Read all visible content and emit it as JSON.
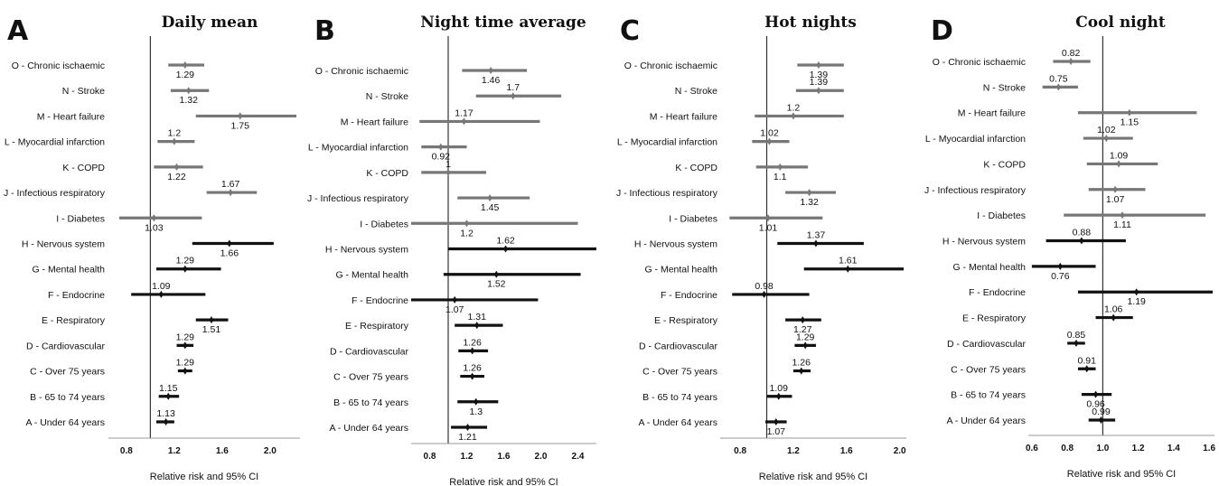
{
  "chart_data": [
    {
      "type": "forest",
      "panel": "A",
      "title": "Daily mean",
      "xlabel": "Relative risk and 95% CI",
      "xlim": [
        0.65,
        2.25
      ],
      "xticks": [
        "0.8",
        "1.2",
        "1.6",
        "2.0"
      ],
      "reference_line": 1.0,
      "rows": [
        {
          "label": "O - Chronic ischaemic",
          "value": 1.29,
          "value_text": "1.29",
          "ci": [
            1.15,
            1.45
          ],
          "color": "#777777"
        },
        {
          "label": "N - Stroke",
          "value": 1.32,
          "value_text": "1.32",
          "ci": [
            1.17,
            1.49
          ],
          "color": "#777777"
        },
        {
          "label": "M - Heart failure",
          "value": 1.75,
          "value_text": "1.75",
          "ci": [
            1.38,
            2.22
          ],
          "color": "#777777"
        },
        {
          "label": "L - Myocardial infarction",
          "value": 1.2,
          "value_text": "1.2",
          "ci": [
            1.06,
            1.37
          ],
          "color": "#777777"
        },
        {
          "label": "K - COPD",
          "value": 1.22,
          "value_text": "1.22",
          "ci": [
            1.03,
            1.44
          ],
          "color": "#777777"
        },
        {
          "label": "J - Infectious respiratory",
          "value": 1.67,
          "value_text": "1.67",
          "ci": [
            1.47,
            1.89
          ],
          "color": "#777777"
        },
        {
          "label": "I - Diabetes",
          "value": 1.03,
          "value_text": "1.03",
          "ci": [
            0.74,
            1.43
          ],
          "color": "#777777"
        },
        {
          "label": "H - Nervous system",
          "value": 1.66,
          "value_text": "1.66",
          "ci": [
            1.35,
            2.03
          ],
          "color": "#111111"
        },
        {
          "label": "G - Mental health",
          "value": 1.29,
          "value_text": "1.29",
          "ci": [
            1.05,
            1.59
          ],
          "color": "#111111"
        },
        {
          "label": "F - Endocrine",
          "value": 1.09,
          "value_text": "1.09",
          "ci": [
            0.84,
            1.46
          ],
          "color": "#111111"
        },
        {
          "label": "E - Respiratory",
          "value": 1.51,
          "value_text": "1.51",
          "ci": [
            1.38,
            1.65
          ],
          "color": "#111111"
        },
        {
          "label": "D - Cardiovascular",
          "value": 1.29,
          "value_text": "1.29",
          "ci": [
            1.22,
            1.36
          ],
          "color": "#111111"
        },
        {
          "label": "C - Over 75 years",
          "value": 1.29,
          "value_text": "1.29",
          "ci": [
            1.23,
            1.35
          ],
          "color": "#111111"
        },
        {
          "label": "B - 65 to 74 years",
          "value": 1.15,
          "value_text": "1.15",
          "ci": [
            1.07,
            1.24
          ],
          "color": "#111111"
        },
        {
          "label": "A - Under 64 years",
          "value": 1.13,
          "value_text": "1.13",
          "ci": [
            1.05,
            1.2
          ],
          "color": "#111111"
        }
      ]
    },
    {
      "type": "forest",
      "panel": "B",
      "title": "Night time average",
      "xlabel": "Relative risk and 95% CI",
      "xlim": [
        0.6,
        2.6
      ],
      "xticks": [
        "0.8",
        "1.2",
        "1.6",
        "2.0",
        "2.4"
      ],
      "reference_line": 1.0,
      "rows": [
        {
          "label": "O - Chronic ischaemic",
          "value": 1.46,
          "value_text": "1.46",
          "ci": [
            1.15,
            1.85
          ],
          "color": "#777777"
        },
        {
          "label": "N - Stroke",
          "value": 1.7,
          "value_text": "1.7",
          "ci": [
            1.3,
            2.22
          ],
          "color": "#777777"
        },
        {
          "label": "M - Heart failure",
          "value": 1.17,
          "value_text": "1.17",
          "ci": [
            0.69,
            1.99
          ],
          "color": "#777777"
        },
        {
          "label": "L - Myocardial infarction",
          "value": 0.92,
          "value_text": "0.92",
          "ci": [
            0.71,
            1.2
          ],
          "color": "#777777"
        },
        {
          "label": "K - COPD",
          "value": 1.0,
          "value_text": "1",
          "ci": [
            0.71,
            1.41
          ],
          "color": "#777777"
        },
        {
          "label": "J - Infectious respiratory",
          "value": 1.45,
          "value_text": "1.45",
          "ci": [
            1.1,
            1.88
          ],
          "color": "#777777"
        },
        {
          "label": "I - Diabetes",
          "value": 1.2,
          "value_text": "1.2",
          "ci": [
            0.6,
            2.4
          ],
          "color": "#777777"
        },
        {
          "label": "H - Nervous system",
          "value": 1.62,
          "value_text": "1.62",
          "ci": [
            1.0,
            2.6
          ],
          "color": "#111111"
        },
        {
          "label": "G - Mental health",
          "value": 1.52,
          "value_text": "1.52",
          "ci": [
            0.95,
            2.43
          ],
          "color": "#111111"
        },
        {
          "label": "F - Endocrine",
          "value": 1.07,
          "value_text": "1.07",
          "ci": [
            0.6,
            1.97
          ],
          "color": "#111111"
        },
        {
          "label": "E - Respiratory",
          "value": 1.31,
          "value_text": "1.31",
          "ci": [
            1.07,
            1.59
          ],
          "color": "#111111"
        },
        {
          "label": "D - Cardiovascular",
          "value": 1.26,
          "value_text": "1.26",
          "ci": [
            1.11,
            1.43
          ],
          "color": "#111111"
        },
        {
          "label": "C - Over 75 years",
          "value": 1.26,
          "value_text": "1.26",
          "ci": [
            1.13,
            1.39
          ],
          "color": "#111111"
        },
        {
          "label": "B - 65 to 74 years",
          "value": 1.3,
          "value_text": "1.3",
          "ci": [
            1.1,
            1.54
          ],
          "color": "#111111"
        },
        {
          "label": "A - Under 64 years",
          "value": 1.21,
          "value_text": "1.21",
          "ci": [
            1.03,
            1.42
          ],
          "color": "#111111"
        }
      ]
    },
    {
      "type": "forest",
      "panel": "C",
      "title": "Hot nights",
      "xlabel": "Relative risk and 95% CI",
      "xlim": [
        0.65,
        2.05
      ],
      "xticks": [
        "0.8",
        "1.2",
        "1.6",
        "2.0"
      ],
      "reference_line": 1.0,
      "rows": [
        {
          "label": "O - Chronic ischaemic",
          "value": 1.39,
          "value_text": "1.39",
          "ci": [
            1.23,
            1.58
          ],
          "color": "#777777"
        },
        {
          "label": "N - Stroke",
          "value": 1.39,
          "value_text": "1.39",
          "ci": [
            1.22,
            1.58
          ],
          "color": "#777777"
        },
        {
          "label": "M - Heart failure",
          "value": 1.2,
          "value_text": "1.2",
          "ci": [
            0.91,
            1.58
          ],
          "color": "#777777"
        },
        {
          "label": "L - Myocardial infarction",
          "value": 1.02,
          "value_text": "1.02",
          "ci": [
            0.89,
            1.17
          ],
          "color": "#777777"
        },
        {
          "label": "K - COPD",
          "value": 1.1,
          "value_text": "1.1",
          "ci": [
            0.92,
            1.31
          ],
          "color": "#777777"
        },
        {
          "label": "J - Infectious respiratory",
          "value": 1.32,
          "value_text": "1.32",
          "ci": [
            1.14,
            1.52
          ],
          "color": "#777777"
        },
        {
          "label": "I - Diabetes",
          "value": 1.01,
          "value_text": "1.01",
          "ci": [
            0.72,
            1.42
          ],
          "color": "#777777"
        },
        {
          "label": "H - Nervous system",
          "value": 1.37,
          "value_text": "1.37",
          "ci": [
            1.08,
            1.73
          ],
          "color": "#111111"
        },
        {
          "label": "G - Mental health",
          "value": 1.61,
          "value_text": "1.61",
          "ci": [
            1.28,
            2.03
          ],
          "color": "#111111"
        },
        {
          "label": "F - Endocrine",
          "value": 0.98,
          "value_text": "0.98",
          "ci": [
            0.74,
            1.32
          ],
          "color": "#111111"
        },
        {
          "label": "E - Respiratory",
          "value": 1.27,
          "value_text": "1.27",
          "ci": [
            1.14,
            1.41
          ],
          "color": "#111111"
        },
        {
          "label": "D - Cardiovascular",
          "value": 1.29,
          "value_text": "1.29",
          "ci": [
            1.21,
            1.37
          ],
          "color": "#111111"
        },
        {
          "label": "C - Over 75 years",
          "value": 1.26,
          "value_text": "1.26",
          "ci": [
            1.2,
            1.33
          ],
          "color": "#111111"
        },
        {
          "label": "B - 65 to 74 years",
          "value": 1.09,
          "value_text": "1.09",
          "ci": [
            1.0,
            1.19
          ],
          "color": "#111111"
        },
        {
          "label": "A - Under 64 years",
          "value": 1.07,
          "value_text": "1.07",
          "ci": [
            0.99,
            1.15
          ],
          "color": "#111111"
        }
      ]
    },
    {
      "type": "forest",
      "panel": "D",
      "title": "Cool night",
      "xlabel": "Relative risk and 95% CI",
      "xlim": [
        0.58,
        1.63
      ],
      "xticks": [
        "0.6",
        "0.8",
        "1.0",
        "1.2",
        "1.4",
        "1.6"
      ],
      "reference_line": 1.0,
      "rows": [
        {
          "label": "O - Chronic ischaemic",
          "value": 0.82,
          "value_text": "0.82",
          "ci": [
            0.72,
            0.93
          ],
          "color": "#777777"
        },
        {
          "label": "N - Stroke",
          "value": 0.75,
          "value_text": "0.75",
          "ci": [
            0.66,
            0.86
          ],
          "color": "#777777"
        },
        {
          "label": "M - Heart failure",
          "value": 1.15,
          "value_text": "1.15",
          "ci": [
            0.86,
            1.53
          ],
          "color": "#777777"
        },
        {
          "label": "L - Myocardial infarction",
          "value": 1.02,
          "value_text": "1.02",
          "ci": [
            0.89,
            1.17
          ],
          "color": "#777777"
        },
        {
          "label": "K - COPD",
          "value": 1.09,
          "value_text": "1.09",
          "ci": [
            0.91,
            1.31
          ],
          "color": "#777777"
        },
        {
          "label": "J - Infectious respiratory",
          "value": 1.07,
          "value_text": "1.07",
          "ci": [
            0.92,
            1.24
          ],
          "color": "#777777"
        },
        {
          "label": "I - Diabetes",
          "value": 1.11,
          "value_text": "1.11",
          "ci": [
            0.78,
            1.58
          ],
          "color": "#777777"
        },
        {
          "label": "H - Nervous system",
          "value": 0.88,
          "value_text": "0.88",
          "ci": [
            0.68,
            1.13
          ],
          "color": "#111111"
        },
        {
          "label": "G - Mental health",
          "value": 0.76,
          "value_text": "0.76",
          "ci": [
            0.6,
            0.96
          ],
          "color": "#111111"
        },
        {
          "label": "F - Endocrine",
          "value": 1.19,
          "value_text": "1.19",
          "ci": [
            0.86,
            1.62
          ],
          "color": "#111111"
        },
        {
          "label": "E - Respiratory",
          "value": 1.06,
          "value_text": "1.06",
          "ci": [
            0.96,
            1.17
          ],
          "color": "#111111"
        },
        {
          "label": "D - Cardiovascular",
          "value": 0.85,
          "value_text": "0.85",
          "ci": [
            0.8,
            0.9
          ],
          "color": "#111111"
        },
        {
          "label": "C - Over 75 years",
          "value": 0.91,
          "value_text": "0.91",
          "ci": [
            0.86,
            0.96
          ],
          "color": "#111111"
        },
        {
          "label": "B - 65 to 74 years",
          "value": 0.96,
          "value_text": "0.96",
          "ci": [
            0.88,
            1.05
          ],
          "color": "#111111"
        },
        {
          "label": "A - Under 64 years",
          "value": 0.99,
          "value_text": "0.99",
          "ci": [
            0.92,
            1.07
          ],
          "color": "#111111"
        }
      ]
    }
  ]
}
